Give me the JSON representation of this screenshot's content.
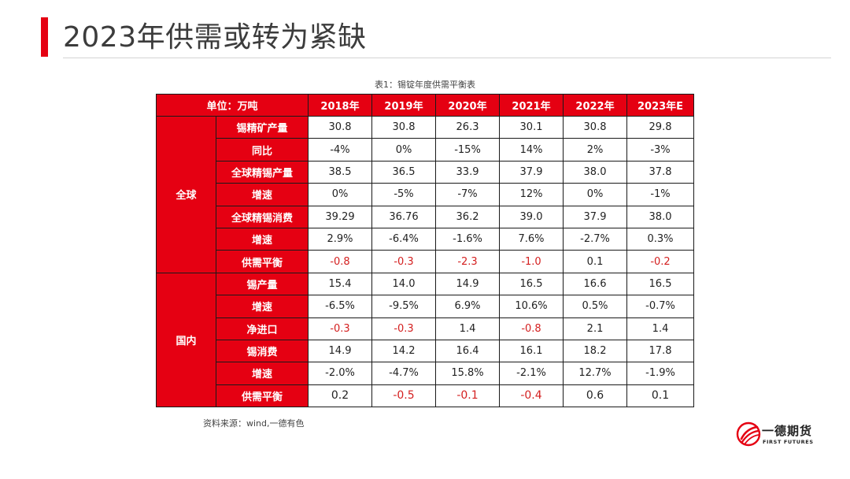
{
  "slide": {
    "title": "2023年供需或转为紧缺",
    "caption": "表1：锡锭年度供需平衡表",
    "source": "资料来源：wind,一德有色"
  },
  "table": {
    "unit_header": "单位：万吨",
    "years": [
      "2018年",
      "2019年",
      "2020年",
      "2021年",
      "2022年",
      "2023年E"
    ],
    "groups": [
      {
        "region": "全球",
        "rows": [
          {
            "metric": "锡精矿产量",
            "values": [
              "30.8",
              "30.8",
              "26.3",
              "30.1",
              "30.8",
              "29.8"
            ],
            "neg": [
              false,
              false,
              false,
              false,
              false,
              false
            ]
          },
          {
            "metric": "同比",
            "values": [
              "-4%",
              "0%",
              "-15%",
              "14%",
              "2%",
              "-3%"
            ],
            "neg": [
              false,
              false,
              false,
              false,
              false,
              false
            ]
          },
          {
            "metric": "全球精锡产量",
            "values": [
              "38.5",
              "36.5",
              "33.9",
              "37.9",
              "38.0",
              "37.8"
            ],
            "neg": [
              false,
              false,
              false,
              false,
              false,
              false
            ]
          },
          {
            "metric": "增速",
            "values": [
              "0%",
              "-5%",
              "-7%",
              "12%",
              "0%",
              "-1%"
            ],
            "neg": [
              false,
              false,
              false,
              false,
              false,
              false
            ]
          },
          {
            "metric": "全球精锡消费",
            "values": [
              "39.29",
              "36.76",
              "36.2",
              "39.0",
              "37.9",
              "38.0"
            ],
            "neg": [
              false,
              false,
              false,
              false,
              false,
              false
            ]
          },
          {
            "metric": "增速",
            "values": [
              "2.9%",
              "-6.4%",
              "-1.6%",
              "7.6%",
              "-2.7%",
              "0.3%"
            ],
            "neg": [
              false,
              false,
              false,
              false,
              false,
              false
            ]
          },
          {
            "metric": "供需平衡",
            "values": [
              "-0.8",
              "-0.3",
              "-2.3",
              "-1.0",
              "0.1",
              "-0.2"
            ],
            "neg": [
              true,
              true,
              true,
              true,
              false,
              true
            ]
          }
        ]
      },
      {
        "region": "国内",
        "rows": [
          {
            "metric": "锡产量",
            "values": [
              "15.4",
              "14.0",
              "14.9",
              "16.5",
              "16.6",
              "16.5"
            ],
            "neg": [
              false,
              false,
              false,
              false,
              false,
              false
            ]
          },
          {
            "metric": "增速",
            "values": [
              "-6.5%",
              "-9.5%",
              "6.9%",
              "10.6%",
              "0.5%",
              "-0.7%"
            ],
            "neg": [
              false,
              false,
              false,
              false,
              false,
              false
            ]
          },
          {
            "metric": "净进口",
            "values": [
              "-0.3",
              "-0.3",
              "1.4",
              "-0.8",
              "2.1",
              "1.4"
            ],
            "neg": [
              true,
              true,
              false,
              true,
              false,
              false
            ]
          },
          {
            "metric": "锡消费",
            "values": [
              "14.9",
              "14.2",
              "16.4",
              "16.1",
              "18.2",
              "17.8"
            ],
            "neg": [
              false,
              false,
              false,
              false,
              false,
              false
            ]
          },
          {
            "metric": "增速",
            "values": [
              "-2.0%",
              "-4.7%",
              "15.8%",
              "-2.1%",
              "12.7%",
              "-1.9%"
            ],
            "neg": [
              false,
              false,
              false,
              false,
              false,
              false
            ]
          },
          {
            "metric": "供需平衡",
            "values": [
              "0.2",
              "-0.5",
              "-0.1",
              "-0.4",
              "0.6",
              "0.1"
            ],
            "neg": [
              false,
              true,
              true,
              true,
              false,
              false
            ],
            "big": true
          }
        ]
      }
    ]
  },
  "logo": {
    "name": "一德期货",
    "english": "FIRST FUTURES",
    "icon": "first-futures-logo-icon",
    "color": "#e50012"
  },
  "colors": {
    "accent": "#e50012",
    "negative_text": "#d42020"
  }
}
